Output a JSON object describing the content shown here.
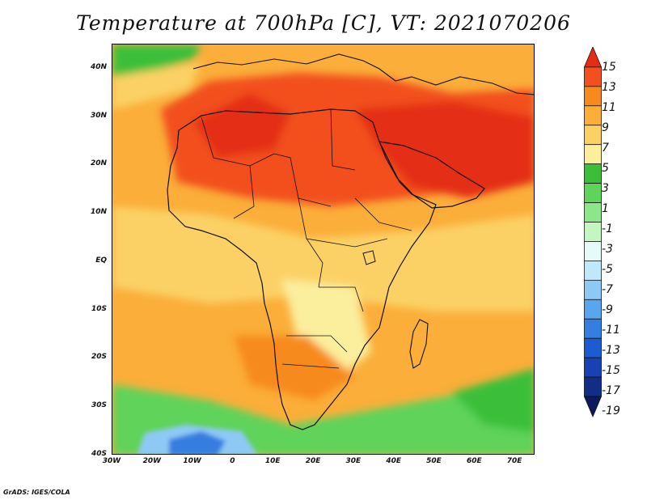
{
  "title": "Temperature at 700hPa [C], VT: 2021070206",
  "credit": "GrADS: IGES/COLA",
  "map": {
    "lat_labels": [
      "40N",
      "30N",
      "20N",
      "10N",
      "EQ",
      "10S",
      "20S",
      "30S",
      "40S"
    ],
    "lat_values": [
      40,
      30,
      20,
      10,
      0,
      -10,
      -20,
      -30,
      -40
    ],
    "lon_labels": [
      "30W",
      "20W",
      "10W",
      "0",
      "10E",
      "20E",
      "30E",
      "40E",
      "50E",
      "60E",
      "70E"
    ],
    "lon_values": [
      -30,
      -20,
      -10,
      0,
      10,
      20,
      30,
      40,
      50,
      60,
      70
    ],
    "lon_range": [
      -30,
      75
    ],
    "lat_range": [
      -40,
      45
    ]
  },
  "colorbar": {
    "labels": [
      "15",
      "13",
      "11",
      "9",
      "7",
      "5",
      "3",
      "1",
      "-1",
      "-3",
      "-5",
      "-7",
      "-9",
      "-11",
      "-13",
      "-15",
      "-17",
      "-19"
    ],
    "colors": [
      "#e42d14",
      "#f2501e",
      "#f78a1e",
      "#fbae3a",
      "#fbd165",
      "#fbee9d",
      "#3bbf3b",
      "#5fd35a",
      "#8ee68a",
      "#c3f6c0",
      "#e6fbf7",
      "#bfe9fa",
      "#8ec9f6",
      "#5aa6ee",
      "#347ee0",
      "#1e5bd0",
      "#1842b4",
      "#122d86",
      "#0b1a5e"
    ]
  }
}
